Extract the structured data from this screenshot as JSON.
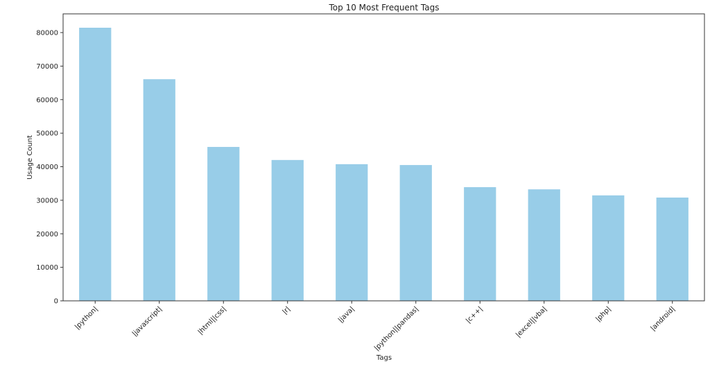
{
  "chart_data": {
    "type": "bar",
    "title": "Top 10 Most Frequent Tags",
    "xlabel": "Tags",
    "ylabel": "Usage Count",
    "categories": [
      "|python|",
      "|javascript|",
      "|html||css|",
      "|r|",
      "|java|",
      "|python||pandas|",
      "|c++|",
      "|excel||vba|",
      "|php|",
      "|android|"
    ],
    "values": [
      81450,
      66100,
      45900,
      42000,
      40750,
      40500,
      33900,
      33250,
      31450,
      30800
    ],
    "ylim": [
      0,
      85000
    ],
    "yticks": [
      0,
      10000,
      20000,
      30000,
      40000,
      50000,
      60000,
      70000,
      80000
    ],
    "grid": false,
    "bar_color": "#98cde8"
  }
}
